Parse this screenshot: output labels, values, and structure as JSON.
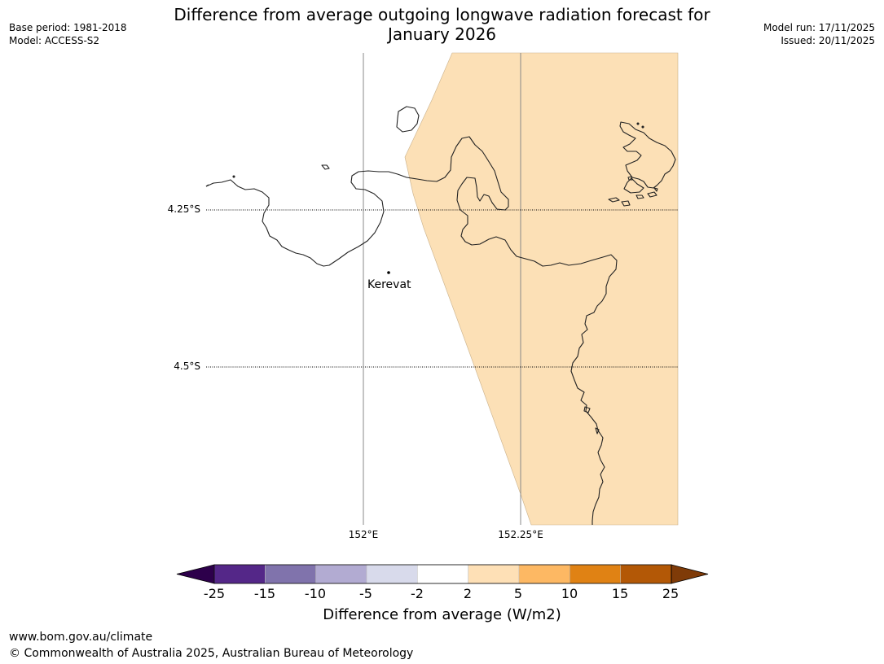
{
  "header": {
    "title_line1": "Difference from average outgoing longwave radiation forecast for",
    "title_line2": "January 2026",
    "base_period": "Base period: 1981-2018",
    "model": "Model: ACCESS-S2",
    "model_run": "Model run: 17/11/2025",
    "issued": "Issued: 20/11/2025"
  },
  "map": {
    "lat_labels": [
      "4.25°S",
      "4.5°S"
    ],
    "lon_labels": [
      "152°E",
      "152.25°E"
    ],
    "place": "Kerevat",
    "anomaly_fill_color": "#fce0b6",
    "coast_color": "#000000"
  },
  "colorbar": {
    "ticks": [
      "-25",
      "-15",
      "-10",
      "-5",
      "-2",
      "2",
      "5",
      "10",
      "15",
      "25"
    ],
    "colors": [
      "#2d004b",
      "#542788",
      "#8073ac",
      "#b2abd2",
      "#d8daeb",
      "#ffffff",
      "#fee0b6",
      "#fdb863",
      "#e08214",
      "#b35806",
      "#7f3b08"
    ],
    "label": "Difference from average (W/m2)"
  },
  "footer": {
    "url": "www.bom.gov.au/climate",
    "copyright": "© Commonwealth of Australia 2025, Australian Bureau of Meteorology"
  }
}
